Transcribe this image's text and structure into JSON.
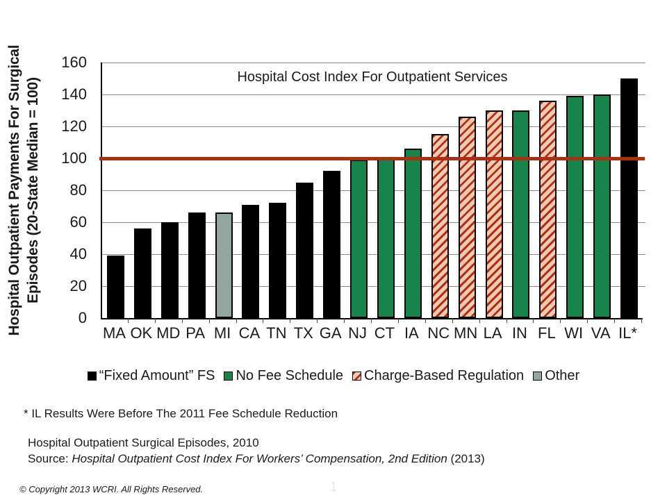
{
  "chart_data": {
    "type": "bar",
    "title": "Hospital Cost Index For Outpatient Services",
    "ylabel_line1": "Hospital Outpatient Payments For Surgical",
    "ylabel_line2": "Episodes (20-State Median = 100)",
    "categories": [
      "MA",
      "OK",
      "MD",
      "PA",
      "MI",
      "CA",
      "TN",
      "TX",
      "GA",
      "NJ",
      "CT",
      "IA",
      "NC",
      "MN",
      "LA",
      "IN",
      "FL",
      "WI",
      "VA",
      "IL*"
    ],
    "values": [
      39,
      56,
      60,
      66,
      66,
      71,
      72,
      85,
      92,
      99,
      100,
      106,
      115,
      126,
      130,
      130,
      136,
      139,
      140,
      150
    ],
    "bar_types": [
      "fixed",
      "fixed",
      "fixed",
      "fixed",
      "other",
      "fixed",
      "fixed",
      "fixed",
      "fixed",
      "nofee",
      "nofee",
      "nofee",
      "charge",
      "charge",
      "charge",
      "nofee",
      "charge",
      "nofee",
      "nofee",
      "fixed"
    ],
    "ylim": [
      0,
      160
    ],
    "yticks": [
      0,
      20,
      40,
      60,
      80,
      100,
      120,
      140,
      160
    ],
    "reference_line": 100,
    "grid": true,
    "legend_position": "bottom"
  },
  "legend": {
    "items": [
      {
        "label": "“Fixed Amount” FS",
        "type": "fixed"
      },
      {
        "label": "No Fee Schedule",
        "type": "nofee"
      },
      {
        "label": "Charge-Based Regulation",
        "type": "charge"
      },
      {
        "label": "Other",
        "type": "other"
      }
    ]
  },
  "colors": {
    "fixed": "#000000",
    "nofee": "#17854B",
    "other": "#93A5A1",
    "charge_bg": "#F7C8B0",
    "charge_stripe": "#A93318",
    "reference_line": "#A93015",
    "gridline": "#8A8A8A"
  },
  "footnotes": {
    "asterisk": "* IL Results Were Before The 2011 Fee Schedule Reduction",
    "episodes": "Hospital Outpatient Surgical Episodes, 2010",
    "source_prefix": "Source: ",
    "source_italic": "Hospital Outpatient Cost Index For Workers’ Compensation, 2nd Edition",
    "source_suffix": " (2013)"
  },
  "footer": {
    "copyright": "© Copyright 2013 WCRI. All Rights Reserved.",
    "page_number": "1"
  }
}
